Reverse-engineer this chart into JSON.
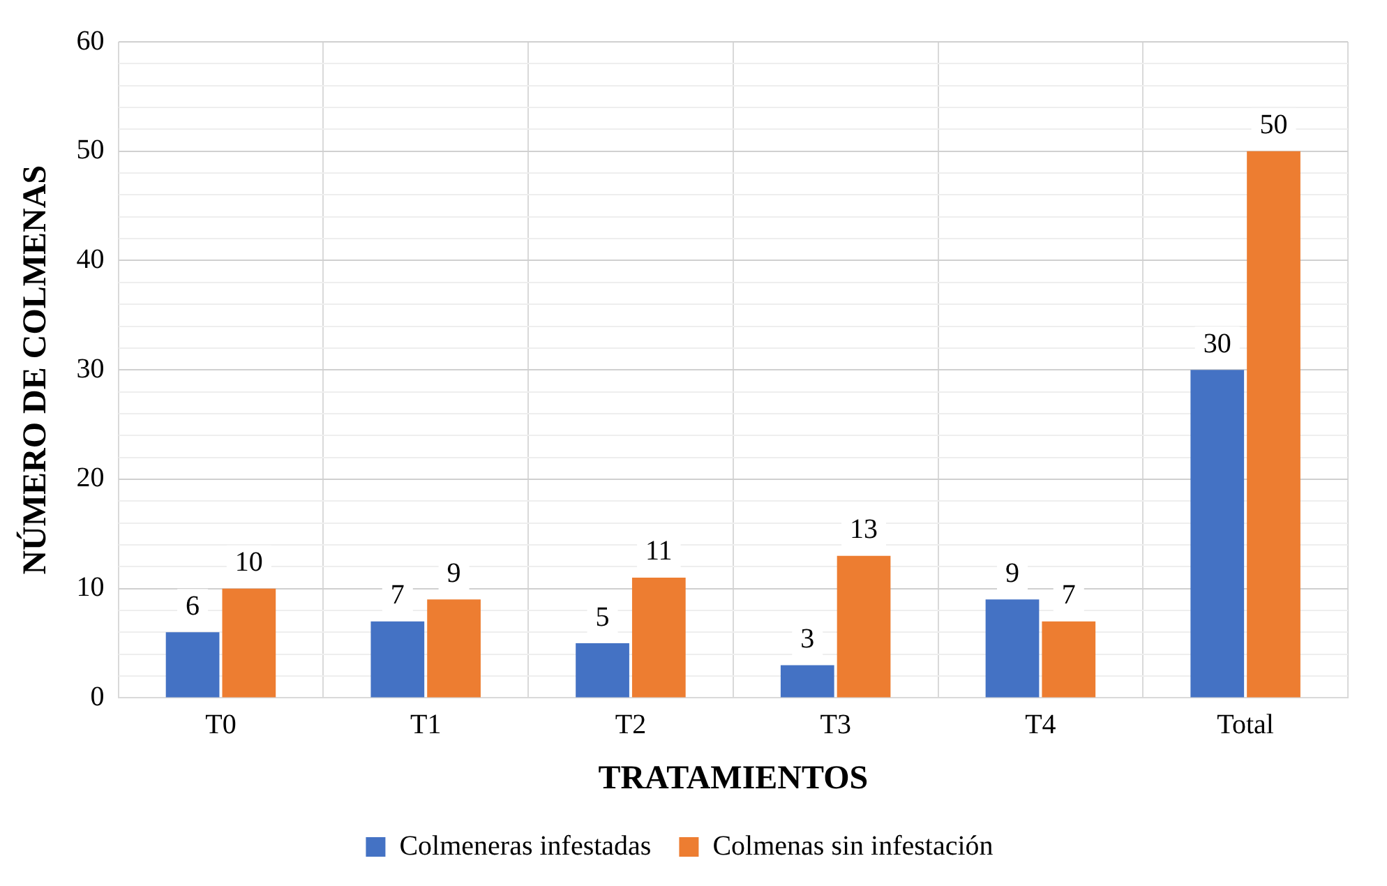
{
  "chart_data": {
    "type": "bar",
    "xlabel": "TRATAMIENTOS",
    "ylabel": "NÚMERO DE COLMENAS",
    "categories": [
      "T0",
      "T1",
      "T2",
      "T3",
      "T4",
      "Total"
    ],
    "series": [
      {
        "name": "Colmeneras infestadas",
        "color": "#4472c4",
        "values": [
          6,
          7,
          5,
          3,
          9,
          30
        ]
      },
      {
        "name": "Colmenas sin infestación",
        "color": "#ed7d31",
        "values": [
          10,
          9,
          11,
          13,
          7,
          50
        ]
      }
    ],
    "ylim": [
      0,
      60
    ],
    "yticks": [
      0,
      {
        "value": 2,
        "label": null
      },
      {
        "value": 4,
        "label": null
      },
      {
        "value": 6,
        "label": null
      },
      {
        "value": 8,
        "label": null
      },
      10,
      {
        "value": 12,
        "label": null
      },
      {
        "value": 14,
        "label": null
      },
      {
        "value": 16,
        "label": null
      },
      {
        "value": 18,
        "label": null
      },
      20,
      {
        "value": 22,
        "label": null
      },
      {
        "value": 24,
        "label": null
      },
      {
        "value": 26,
        "label": null
      },
      {
        "value": 28,
        "label": null
      },
      30,
      {
        "value": 32,
        "label": null
      },
      {
        "value": 34,
        "label": null
      },
      {
        "value": 36,
        "label": null
      },
      {
        "value": 38,
        "label": null
      },
      40,
      {
        "value": 42,
        "label": null
      },
      {
        "value": 44,
        "label": null
      },
      {
        "value": 46,
        "label": null
      },
      {
        "value": 48,
        "label": null
      },
      50,
      {
        "value": 52,
        "label": null
      },
      {
        "value": 54,
        "label": null
      },
      {
        "value": 56,
        "label": null
      },
      {
        "value": 58,
        "label": null
      },
      60
    ],
    "grid": true,
    "legend": "bottom",
    "data_labels": true
  }
}
